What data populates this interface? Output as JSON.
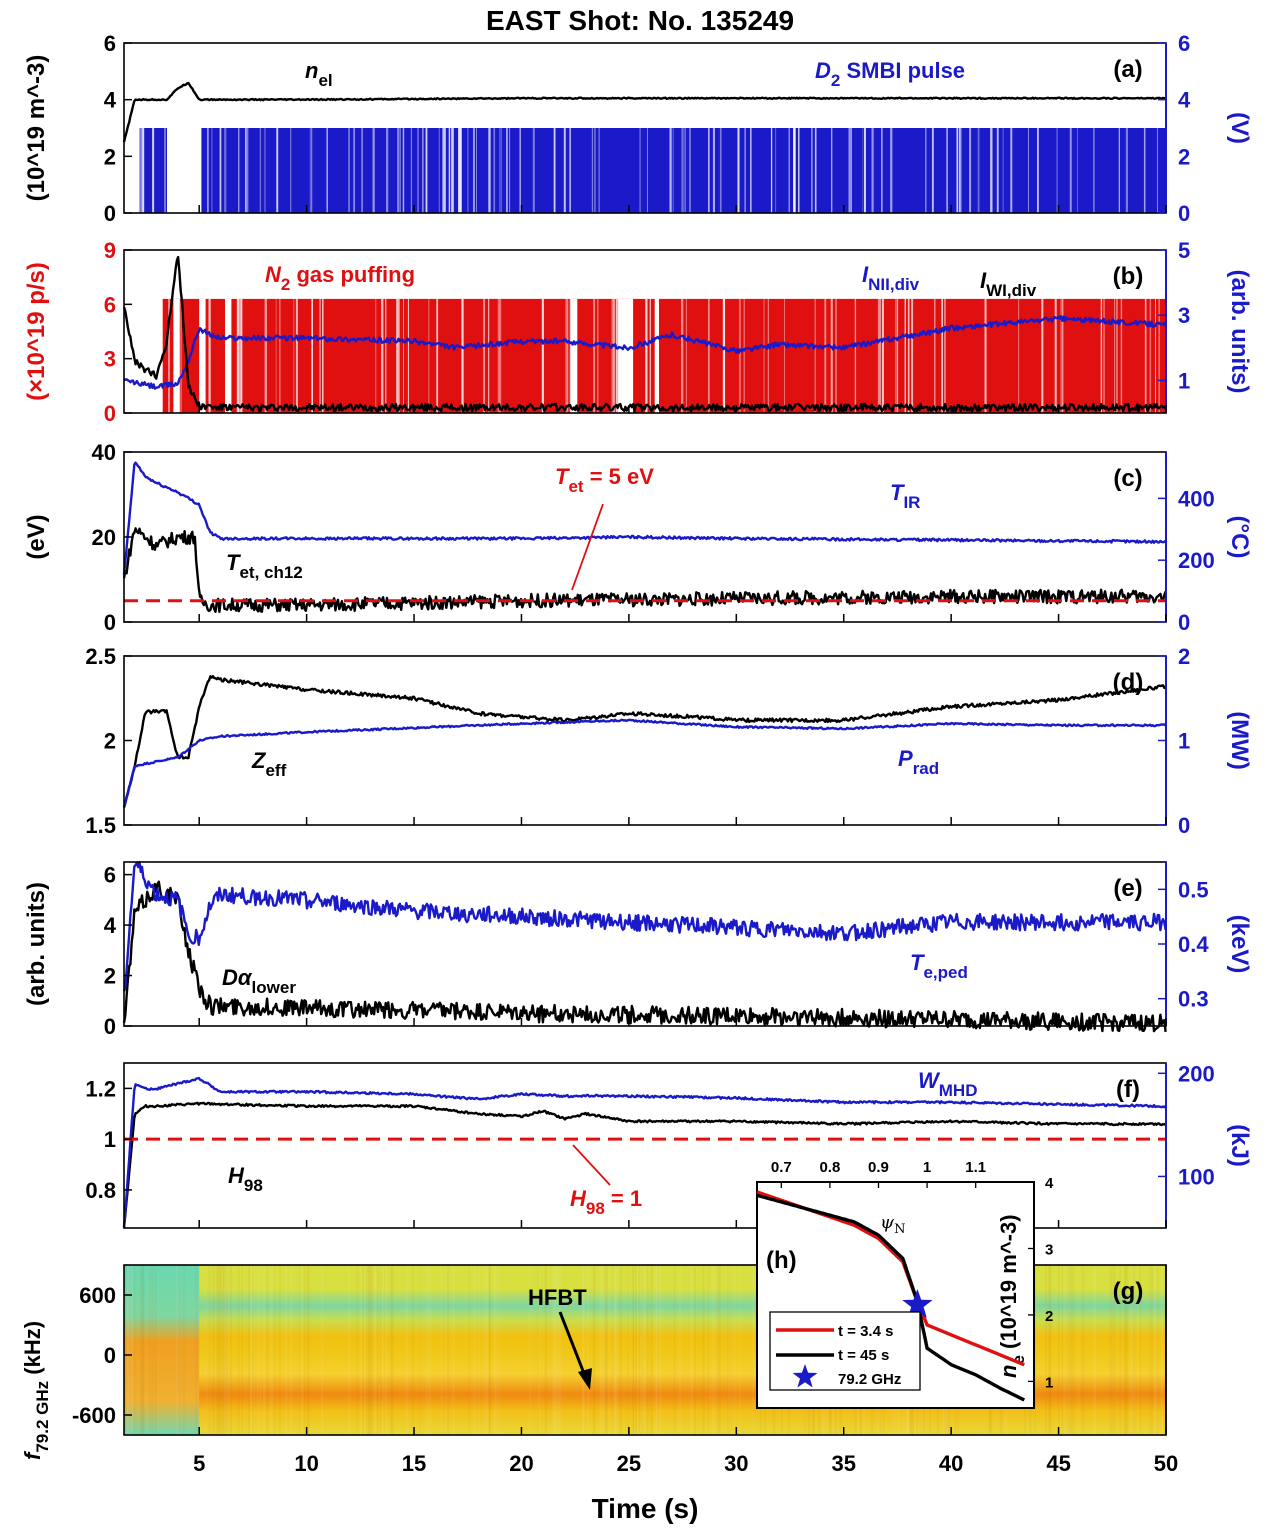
{
  "title": "EAST Shot: No. 135249",
  "x_axis": {
    "label": "Time (s)",
    "ticks": [
      5,
      10,
      15,
      20,
      25,
      30,
      35,
      40,
      45,
      50
    ],
    "range": [
      1.5,
      50
    ]
  },
  "colors": {
    "black": "#000000",
    "blue": "#1a1ac8",
    "red": "#e01010",
    "axis_blue": "#1a1ac8"
  },
  "panels": [
    {
      "id": "a",
      "label": "(a)",
      "left_unit": "(10^19 m^-3)",
      "right_unit": "(V)",
      "left_ticks": [
        "0",
        "2",
        "4",
        "6"
      ],
      "right_ticks": [
        "0",
        "2",
        "4",
        "6"
      ],
      "ann1": "n",
      "ann1_sub": "el",
      "ann2": "D",
      "ann2_sub": "2",
      "ann2_rest": " SMBI pulse"
    },
    {
      "id": "b",
      "label": "(b)",
      "left_unit": "(×10^19 p/s)",
      "right_unit": "(arb. units)",
      "left_ticks": [
        "0",
        "3",
        "6",
        "9"
      ],
      "right_ticks": [
        "1",
        "3",
        "5"
      ],
      "ann1": "N",
      "ann1_sub": "2",
      "ann1_rest": " gas puffing",
      "ann2": "I",
      "ann2_sub": "NII,div",
      "ann3": "I",
      "ann3_sub": "WI,div"
    },
    {
      "id": "c",
      "label": "(c)",
      "left_unit": "(eV)",
      "right_unit": "(°C)",
      "left_ticks": [
        "0",
        "20",
        "40"
      ],
      "right_ticks": [
        "0",
        "200",
        "400"
      ],
      "ann1": "T",
      "ann1_sub": "et, ch12",
      "ann2": "T",
      "ann2_sub": "IR",
      "ann3": "T",
      "ann3_sub": "et",
      "ann3_rest": " = 5 eV"
    },
    {
      "id": "d",
      "label": "(d)",
      "left_unit": "",
      "right_unit": "(MW)",
      "left_ticks": [
        "1.5",
        "2",
        "2.5"
      ],
      "right_ticks": [
        "0",
        "1",
        "2"
      ],
      "ann1": "Z",
      "ann1_sub": "eff",
      "ann2": "P",
      "ann2_sub": "rad"
    },
    {
      "id": "e",
      "label": "(e)",
      "left_unit": "(arb. units)",
      "right_unit": "(keV)",
      "left_ticks": [
        "0",
        "2",
        "4",
        "6"
      ],
      "right_ticks": [
        "0.3",
        "0.4",
        "0.5"
      ],
      "ann1": "Dα",
      "ann1_sub": "lower",
      "ann2": "T",
      "ann2_sub": "e,ped"
    },
    {
      "id": "f",
      "label": "(f)",
      "left_unit": "",
      "right_unit": "(kJ)",
      "left_ticks": [
        "0.8",
        "1",
        "1.2"
      ],
      "right_ticks": [
        "100",
        "200"
      ],
      "ann1": "H",
      "ann1_sub": "98",
      "ann2": "W",
      "ann2_sub": "MHD",
      "ann3": "H",
      "ann3_sub": "98",
      "ann3_rest": " = 1"
    },
    {
      "id": "g",
      "label": "(g)",
      "left_unit": "f",
      "left_unit_sub": "79.2 GHz",
      "left_unit_rest": " (kHz)",
      "left_ticks": [
        "-600",
        "0",
        "600"
      ],
      "ann1": "HFBT"
    }
  ],
  "inset": {
    "label": "(h)",
    "xlabel": "ψ",
    "xlabel_sub": "N",
    "ylabel": "n",
    "ylabel_sub": "e",
    "ylabel_rest": " (10^19 m^-3)",
    "x_ticks": [
      "0.7",
      "0.8",
      "0.9",
      "1",
      "1.1"
    ],
    "y_ticks": [
      "1",
      "2",
      "3",
      "4"
    ],
    "legend": [
      "t = 3.4 s",
      "t = 45 s",
      "79.2 GHz"
    ]
  },
  "chart_data": [
    {
      "type": "line",
      "panel": "a",
      "xlabel": "Time (s)",
      "ylim": [
        0,
        6
      ],
      "y2lim": [
        0,
        6
      ],
      "series": [
        {
          "name": "n_el",
          "axis": "left",
          "x": [
            1.5,
            2,
            2.5,
            3,
            3.5,
            4,
            4.5,
            5,
            6,
            10,
            20,
            30,
            40,
            50
          ],
          "y": [
            2.5,
            4.0,
            4.0,
            4.0,
            4.0,
            4.4,
            4.6,
            4.0,
            4.0,
            4.0,
            4.05,
            4.05,
            4.05,
            4.05
          ]
        },
        {
          "name": "D2 SMBI pulse",
          "axis": "right",
          "level": 3.0,
          "gaps": [
            [
              3.5,
              5.1
            ]
          ],
          "x_start": 2.2,
          "x_end": 50
        }
      ]
    },
    {
      "type": "line",
      "panel": "b",
      "ylim": [
        0,
        9
      ],
      "y2lim": [
        0,
        5
      ],
      "series": [
        {
          "name": "N2 gas puffing",
          "axis": "left",
          "level": 6.3,
          "x_start": 3.3,
          "x_end": 50,
          "gaps": [
            [
              3.8,
              4.1
            ],
            [
              5.0,
              5.3
            ],
            [
              6.2,
              6.5
            ],
            [
              22.3,
              22.6
            ],
            [
              24.5,
              25.2
            ],
            [
              26.2,
              26.4
            ]
          ]
        },
        {
          "name": "I_NII,div",
          "axis": "right",
          "x": [
            1.5,
            3,
            4,
            4.5,
            5,
            5.5,
            6,
            10,
            15,
            17,
            20,
            22,
            25,
            27,
            30,
            32,
            35,
            40,
            45,
            50
          ],
          "y": [
            1.0,
            0.8,
            0.9,
            1.6,
            2.6,
            2.4,
            2.3,
            2.3,
            2.2,
            2.0,
            2.2,
            2.2,
            2.0,
            2.4,
            1.9,
            2.1,
            2.0,
            2.6,
            2.9,
            2.7
          ]
        },
        {
          "name": "I_WI,div",
          "axis": "left",
          "x": [
            1.5,
            2,
            3,
            3.5,
            4,
            4.5,
            5,
            6,
            10,
            20,
            30,
            40,
            50
          ],
          "y": [
            6,
            2.8,
            2.0,
            4.0,
            9.0,
            1.5,
            0.4,
            0.3,
            0.3,
            0.3,
            0.3,
            0.3,
            0.3
          ]
        }
      ]
    },
    {
      "type": "line",
      "panel": "c",
      "ylim": [
        0,
        40
      ],
      "y2lim": [
        0,
        550
      ],
      "series": [
        {
          "name": "T_et, ch12",
          "axis": "left",
          "x": [
            1.5,
            2,
            3,
            4,
            4.8,
            5,
            5.5,
            6,
            10,
            20,
            30,
            40,
            50
          ],
          "y": [
            10,
            22,
            18,
            20,
            20,
            5,
            4,
            4,
            4,
            5,
            5.5,
            6,
            6
          ]
        },
        {
          "name": "T_IR",
          "axis": "right",
          "x": [
            1.5,
            2,
            2.5,
            3,
            4,
            5,
            5.5,
            6,
            10,
            20,
            25,
            30,
            40,
            50
          ],
          "y": [
            150,
            520,
            470,
            450,
            420,
            380,
            290,
            270,
            270,
            270,
            275,
            270,
            265,
            260
          ]
        },
        {
          "name": "T_et = 5 eV",
          "axis": "left",
          "x": [
            1.5,
            50
          ],
          "y": [
            5,
            5
          ]
        }
      ]
    },
    {
      "type": "line",
      "panel": "d",
      "ylim": [
        1.5,
        2.5
      ],
      "y2lim": [
        0,
        2
      ],
      "series": [
        {
          "name": "Z_eff",
          "axis": "left",
          "x": [
            1.5,
            2,
            2.5,
            3,
            3.5,
            3.8,
            4,
            4.5,
            5,
            5.5,
            6,
            10,
            15,
            18,
            20,
            22,
            25,
            28,
            30,
            35,
            40,
            45,
            50
          ],
          "y": [
            1.6,
            1.85,
            2.17,
            2.17,
            2.17,
            2.0,
            1.9,
            1.9,
            2.2,
            2.38,
            2.36,
            2.3,
            2.25,
            2.16,
            2.14,
            2.12,
            2.16,
            2.14,
            2.12,
            2.12,
            2.2,
            2.24,
            2.32
          ]
        },
        {
          "name": "P_rad",
          "axis": "right",
          "x": [
            1.5,
            2,
            3,
            4,
            5,
            6,
            10,
            20,
            25,
            30,
            35,
            40,
            45,
            50
          ],
          "y": [
            0.2,
            0.7,
            0.75,
            0.8,
            1.0,
            1.05,
            1.1,
            1.2,
            1.24,
            1.16,
            1.14,
            1.2,
            1.18,
            1.18
          ]
        }
      ]
    },
    {
      "type": "line",
      "panel": "e",
      "ylim": [
        0,
        6.5
      ],
      "y2lim": [
        0.25,
        0.55
      ],
      "series": [
        {
          "name": "Dα_lower",
          "axis": "left",
          "x": [
            1.5,
            2,
            3,
            4,
            4.5,
            5,
            5.5,
            10,
            20,
            30,
            40,
            50
          ],
          "y": [
            0,
            4.5,
            5.5,
            5.0,
            3.0,
            1.5,
            0.8,
            0.7,
            0.5,
            0.4,
            0.25,
            0.1
          ]
        },
        {
          "name": "T_e,ped",
          "axis": "right",
          "x": [
            1.5,
            2,
            3,
            4,
            4.5,
            5,
            5.5,
            6,
            10,
            15,
            20,
            25,
            30,
            35,
            40,
            45,
            50
          ],
          "y": [
            0.3,
            0.55,
            0.49,
            0.48,
            0.42,
            0.41,
            0.47,
            0.49,
            0.48,
            0.46,
            0.45,
            0.44,
            0.43,
            0.42,
            0.44,
            0.44,
            0.44
          ]
        }
      ]
    },
    {
      "type": "line",
      "panel": "f",
      "ylim": [
        0.65,
        1.3
      ],
      "y2lim": [
        50,
        210
      ],
      "series": [
        {
          "name": "H_98",
          "axis": "left",
          "x": [
            1.5,
            2,
            2.5,
            3,
            5,
            10,
            15,
            16,
            18,
            20,
            21,
            22,
            23,
            25,
            30,
            35,
            40,
            45,
            50
          ],
          "y": [
            0.65,
            1.1,
            1.13,
            1.13,
            1.14,
            1.13,
            1.13,
            1.12,
            1.1,
            1.09,
            1.11,
            1.08,
            1.1,
            1.07,
            1.07,
            1.06,
            1.07,
            1.06,
            1.06
          ]
        },
        {
          "name": "W_MHD",
          "axis": "right",
          "x": [
            1.5,
            2,
            2.5,
            3,
            4,
            5,
            6,
            10,
            15,
            16,
            18,
            20,
            22,
            25,
            30,
            35,
            40,
            45,
            50
          ],
          "y": [
            50,
            190,
            185,
            185,
            190,
            195,
            182,
            182,
            180,
            178,
            175,
            180,
            178,
            178,
            176,
            172,
            172,
            170,
            168
          ]
        },
        {
          "name": "H_98 = 1",
          "axis": "left",
          "x": [
            1.5,
            50
          ],
          "y": [
            1,
            1
          ]
        }
      ]
    },
    {
      "type": "heatmap",
      "panel": "g",
      "xlabel": "Time (s)",
      "ylabel": "f_79.2 GHz (kHz)",
      "ylim": [
        -800,
        900
      ],
      "bands_khz": [
        {
          "f": 400,
          "intensity": "low"
        },
        {
          "f": 0,
          "intensity": "medium"
        },
        {
          "f": -550,
          "intensity": "high"
        }
      ],
      "note_text": "HFBT"
    },
    {
      "type": "line",
      "panel": "h",
      "xlim": [
        0.65,
        1.22
      ],
      "ylim": [
        0.6,
        4.0
      ],
      "series": [
        {
          "name": "t = 3.4 s",
          "x": [
            0.65,
            0.75,
            0.85,
            0.9,
            0.95,
            0.98,
            1.0,
            1.05,
            1.1,
            1.15,
            1.2
          ],
          "y": [
            3.85,
            3.6,
            3.35,
            3.15,
            2.8,
            2.2,
            1.85,
            1.7,
            1.55,
            1.4,
            1.25
          ]
        },
        {
          "name": "t = 45 s",
          "x": [
            0.65,
            0.75,
            0.85,
            0.9,
            0.95,
            0.98,
            1.0,
            1.05,
            1.1,
            1.15,
            1.2
          ],
          "y": [
            3.8,
            3.6,
            3.4,
            3.2,
            2.85,
            2.2,
            1.5,
            1.25,
            1.1,
            0.9,
            0.72
          ]
        },
        {
          "name": "79.2 GHz",
          "x": [
            0.98
          ],
          "y": [
            2.15
          ]
        }
      ]
    }
  ]
}
